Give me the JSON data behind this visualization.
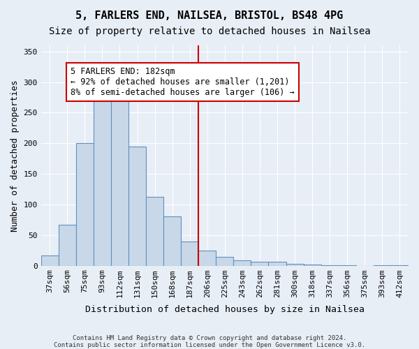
{
  "title1": "5, FARLERS END, NAILSEA, BRISTOL, BS48 4PG",
  "title2": "Size of property relative to detached houses in Nailsea",
  "xlabel": "Distribution of detached houses by size in Nailsea",
  "ylabel": "Number of detached properties",
  "footnote1": "Contains HM Land Registry data © Crown copyright and database right 2024.",
  "footnote2": "Contains public sector information licensed under the Open Government Licence v3.0.",
  "categories": [
    "37sqm",
    "56sqm",
    "75sqm",
    "93sqm",
    "112sqm",
    "131sqm",
    "150sqm",
    "168sqm",
    "187sqm",
    "206sqm",
    "225sqm",
    "243sqm",
    "262sqm",
    "281sqm",
    "300sqm",
    "318sqm",
    "337sqm",
    "356sqm",
    "375sqm",
    "393sqm",
    "412sqm"
  ],
  "values": [
    17,
    67,
    200,
    280,
    280,
    195,
    112,
    80,
    39,
    25,
    14,
    9,
    6,
    6,
    3,
    2,
    1,
    1,
    0,
    1,
    1
  ],
  "bar_color": "#c8d8e8",
  "bar_edge_color": "#6090c0",
  "vline_x_index": 8,
  "vline_color": "#cc0000",
  "annotation_text": "5 FARLERS END: 182sqm\n← 92% of detached houses are smaller (1,201)\n8% of semi-detached houses are larger (106) →",
  "annotation_box_color": "#ffffff",
  "annotation_box_edge_color": "#cc0000",
  "ylim": [
    0,
    360
  ],
  "yticks": [
    0,
    50,
    100,
    150,
    200,
    250,
    300,
    350
  ],
  "bg_color": "#e8eef6",
  "plot_bg_color": "#e8eef6",
  "grid_color": "#ffffff",
  "title1_fontsize": 11,
  "title2_fontsize": 10,
  "xlabel_fontsize": 9.5,
  "ylabel_fontsize": 9,
  "tick_fontsize": 8,
  "annotation_fontsize": 8.5
}
